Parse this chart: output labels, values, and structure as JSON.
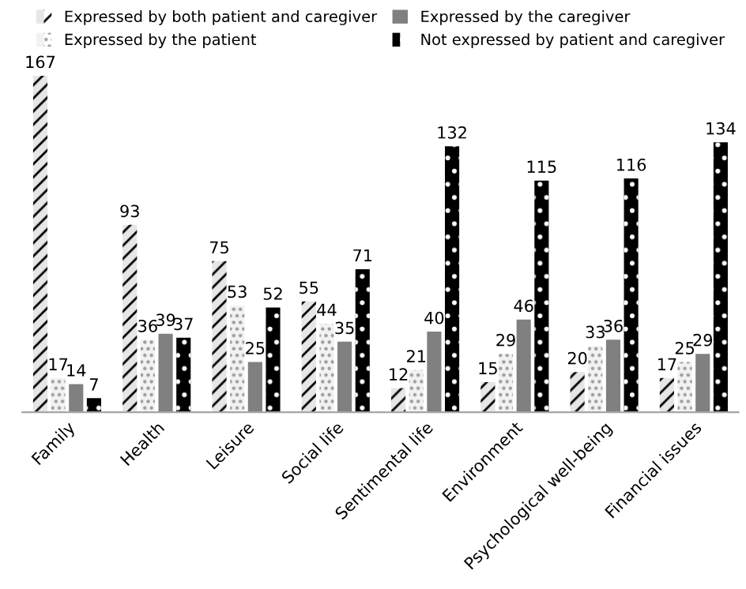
{
  "chart_data": {
    "type": "bar",
    "categories": [
      "Family",
      "Health",
      "Leisure",
      "Social life",
      "Sentimental life",
      "Environment",
      "Psychological well-being",
      "Financial issues"
    ],
    "series": [
      {
        "name": "Expressed by both patient and caregiver",
        "color": "#e6e6e6",
        "values": [
          167,
          93,
          75,
          55,
          12,
          15,
          20,
          17
        ]
      },
      {
        "name": "Expressed by the patient",
        "color": "#f2f2f2",
        "values": [
          17,
          36,
          53,
          44,
          21,
          29,
          33,
          25
        ]
      },
      {
        "name": "Expressed by the caregiver",
        "color": "#808080",
        "values": [
          14,
          39,
          25,
          35,
          40,
          46,
          36,
          29
        ]
      },
      {
        "name": "Not expressed by patient and caregiver",
        "color": "#000000",
        "values": [
          7,
          37,
          52,
          71,
          132,
          115,
          116,
          134
        ]
      }
    ],
    "data_labels": true,
    "tick_labels": "x",
    "legend": "top",
    "grid": false
  }
}
